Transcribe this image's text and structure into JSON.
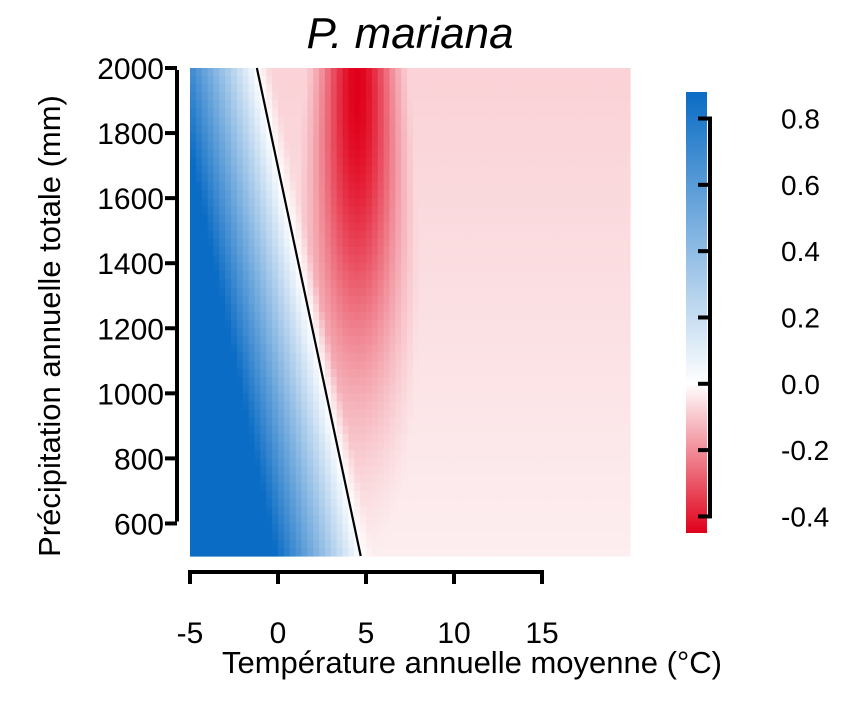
{
  "chart_data": {
    "type": "heatmap",
    "title": "P. mariana",
    "xlabel": "Température annuelle moyenne (°C)",
    "ylabel": "Précipitation annuelle totale (mm)",
    "xlim": [
      -5,
      20
    ],
    "ylim": [
      500,
      2000
    ],
    "x_ticks": [
      -5,
      0,
      5,
      10,
      15
    ],
    "x_tick_labels": [
      "-5",
      "0",
      "5",
      "10",
      "15"
    ],
    "y_ticks": [
      600,
      800,
      1000,
      1200,
      1400,
      1600,
      1800,
      2000
    ],
    "y_tick_labels": [
      "600",
      "800",
      "1000",
      "1200",
      "1400",
      "1600",
      "1800",
      "2000"
    ],
    "grid": false,
    "zero_contour": {
      "x": [
        -1.2,
        4.7
      ],
      "y": [
        2000,
        500
      ]
    },
    "colorbar": {
      "range": [
        -0.45,
        0.88
      ],
      "ticks": [
        0.8,
        0.6,
        0.4,
        0.2,
        0.0,
        -0.2,
        -0.4
      ],
      "tick_labels": [
        "0.8",
        "0.6",
        "0.4",
        "0.2",
        "0.0",
        "-0.2",
        "-0.4"
      ],
      "color_positive": "#0a6cc4",
      "color_zero": "#ffffff",
      "color_negative": "#e0001a",
      "placement": "right"
    },
    "surface": {
      "positive_max": 0.88,
      "negative_peak": -0.45,
      "negative_peak_at": {
        "x": 4.5,
        "y": 1950
      }
    }
  }
}
